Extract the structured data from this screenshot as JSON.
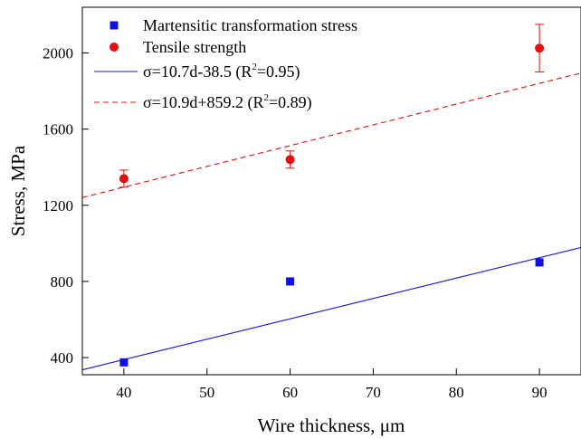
{
  "chart_data": {
    "type": "scatter",
    "xlabel": "Wire thickness, μm",
    "ylabel": "Stress, MPa",
    "xlim": [
      35,
      95
    ],
    "ylim": [
      310,
      2240
    ],
    "xticks": [
      40,
      50,
      60,
      70,
      80,
      90
    ],
    "yticks": [
      400,
      800,
      1200,
      1600,
      2000
    ],
    "grid": false,
    "legend_position": "top-left",
    "series": [
      {
        "name": "Martensitic transformation stress",
        "kind": "points",
        "marker": "square",
        "color": "#1010e0",
        "points": [
          {
            "x": 40,
            "y": 375
          },
          {
            "x": 60,
            "y": 800
          },
          {
            "x": 90,
            "y": 900
          }
        ]
      },
      {
        "name": "Tensile strength",
        "kind": "points",
        "marker": "circle",
        "color": "#e01010",
        "points": [
          {
            "x": 40,
            "y": 1340,
            "err": 45
          },
          {
            "x": 60,
            "y": 1440,
            "err": 45
          },
          {
            "x": 90,
            "y": 2025,
            "err": 125
          }
        ]
      },
      {
        "name_main": "σ=10.7d-38.5 (R",
        "name_sup": "2",
        "name_tail": "=0.95)",
        "kind": "fit",
        "style": "solid",
        "color": "#1010e0",
        "slope": 10.7,
        "intercept": -38.5
      },
      {
        "name_main": "σ=10.9d+859.2 (R",
        "name_sup": "2",
        "name_tail": "=0.89)",
        "kind": "fit",
        "style": "dashed",
        "color": "#e01010",
        "slope": 10.9,
        "intercept": 859.2
      }
    ]
  }
}
